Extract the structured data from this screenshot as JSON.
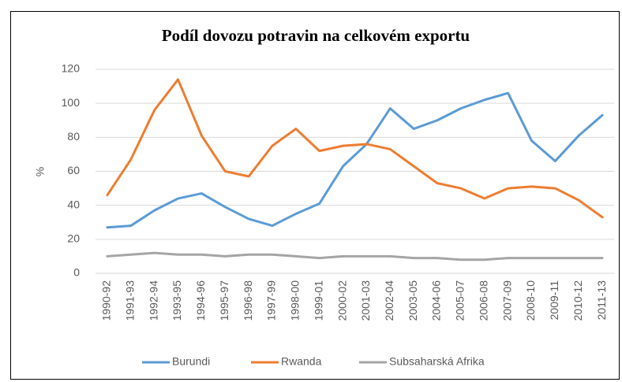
{
  "chart_data": {
    "type": "line",
    "title": "Podíl dovozu potravin na celkovém exportu",
    "y_label": "%",
    "categories": [
      "1990-92",
      "1991-93",
      "1992-94",
      "1993-95",
      "1994-96",
      "1995-97",
      "1996-98",
      "1997-99",
      "1998-00",
      "1999-01",
      "2000-02",
      "2001-03",
      "2002-04",
      "2003-05",
      "2004-06",
      "2005-07",
      "2006-08",
      "2007-09",
      "2008-10",
      "2009-11",
      "2010-12",
      "2011-13"
    ],
    "series": [
      {
        "name": "Burundi",
        "color": "#5b9bd5",
        "values": [
          27,
          28,
          37,
          44,
          47,
          39,
          32,
          28,
          35,
          41,
          63,
          76,
          97,
          85,
          90,
          97,
          102,
          106,
          78,
          66,
          81,
          93
        ]
      },
      {
        "name": "Rwanda",
        "color": "#ed7d31",
        "values": [
          46,
          67,
          96,
          114,
          81,
          60,
          57,
          75,
          85,
          72,
          75,
          76,
          73,
          63,
          53,
          50,
          44,
          50,
          51,
          50,
          43,
          33
        ]
      },
      {
        "name": "Subsaharská Afrika",
        "color": "#a5a5a5",
        "values": [
          10,
          11,
          12,
          11,
          11,
          10,
          11,
          11,
          10,
          9,
          10,
          10,
          10,
          9,
          9,
          8,
          8,
          9,
          9,
          9,
          9,
          9
        ]
      }
    ],
    "ylim": [
      0,
      120
    ],
    "yticks": [
      0,
      20,
      40,
      60,
      80,
      100,
      120
    ],
    "grid": true,
    "legend": "bottom"
  }
}
